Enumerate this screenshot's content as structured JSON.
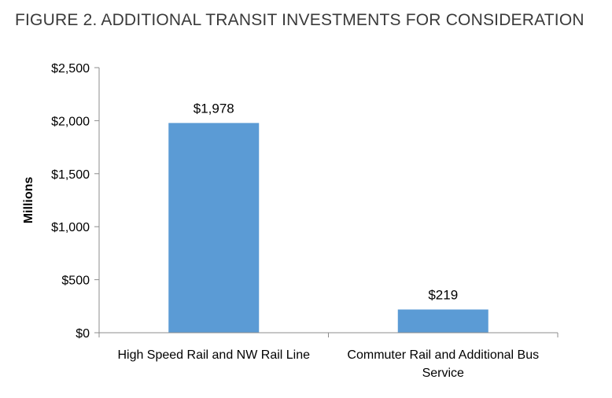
{
  "figure_title": "FIGURE 2.   ADDITIONAL TRANSIT INVESTMENTS FOR CONSIDERATION",
  "colors": {
    "bar": "#5b9bd5",
    "axis": "#8c8c8c"
  },
  "chart_data": {
    "type": "bar",
    "title": "",
    "xlabel": "",
    "ylabel": "Millions",
    "ylim": [
      0,
      2500
    ],
    "yticks": [
      0,
      500,
      1000,
      1500,
      2000,
      2500
    ],
    "ytick_labels": [
      "$0",
      "$500",
      "$1,000",
      "$1,500",
      "$2,000",
      "$2,500"
    ],
    "categories": [
      [
        "High Speed Rail and NW Rail Line"
      ],
      [
        "Commuter Rail and Additional Bus",
        "Service"
      ]
    ],
    "values": [
      1978,
      219
    ],
    "data_labels": [
      "$1,978",
      "$219"
    ],
    "grid": false,
    "legend": "none"
  }
}
